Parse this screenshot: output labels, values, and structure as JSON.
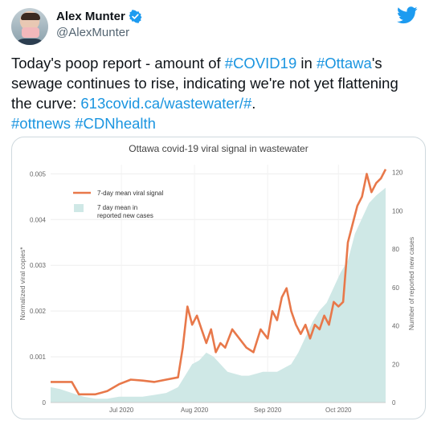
{
  "author": {
    "name": "Alex Munter",
    "handle": "@AlexMunter"
  },
  "tweet": {
    "segments": [
      {
        "text": "Today's poop report - amount of ",
        "link": false
      },
      {
        "text": "#COVID19",
        "link": true
      },
      {
        "text": " in ",
        "link": false
      },
      {
        "text": "#Ottawa",
        "link": true
      },
      {
        "text": "'s sewage continues to rise, indicating we're not yet flattening the curve: ",
        "link": false
      },
      {
        "text": "613covid.ca/wastewater/#",
        "link": true
      },
      {
        "text": ".",
        "link": false
      },
      {
        "text": "\n",
        "link": false
      },
      {
        "text": "#ottnews",
        "link": true
      },
      {
        "text": " ",
        "link": false
      },
      {
        "text": "#CDNhealth",
        "link": true
      }
    ]
  },
  "colors": {
    "link": "#1b95e0",
    "viral_line": "#e8784a",
    "cases_area": "#cfe8e6",
    "twitter_blue": "#1d9bf0"
  },
  "icons": {
    "verified": "verified-badge-icon",
    "brand": "twitter-bird-icon"
  },
  "chart_data": {
    "type": "line",
    "title": "Ottawa covid-19 viral signal in wastewater",
    "ylabel": "Normalized viral copies*",
    "y2label": "Number of reported new cases",
    "ylim": [
      0,
      0.0052
    ],
    "y2lim": [
      0,
      124
    ],
    "yticks": [
      "0",
      "0.001",
      "0.002",
      "0.003",
      "0.004",
      "0.005"
    ],
    "y2ticks": [
      "0",
      "20",
      "40",
      "60",
      "80",
      "100",
      "120"
    ],
    "xticks": [
      "Jul 2020",
      "Aug 2020",
      "Sep 2020",
      "Oct 2020"
    ],
    "x_start": "2020-06-01",
    "x_end": "2020-10-21",
    "legend_position": "top-left",
    "series": [
      {
        "name": "7-day mean viral signal",
        "kind": "line",
        "axis": "left",
        "points": [
          [
            "2020-06-01",
            0.00045
          ],
          [
            "2020-06-10",
            0.00045
          ],
          [
            "2020-06-13",
            0.00018
          ],
          [
            "2020-06-20",
            0.00018
          ],
          [
            "2020-06-25",
            0.00025
          ],
          [
            "2020-06-30",
            0.0004
          ],
          [
            "2020-07-05",
            0.0005
          ],
          [
            "2020-07-10",
            0.00048
          ],
          [
            "2020-07-15",
            0.00045
          ],
          [
            "2020-07-20",
            0.0005
          ],
          [
            "2020-07-25",
            0.00055
          ],
          [
            "2020-07-27",
            0.0012
          ],
          [
            "2020-07-29",
            0.0021
          ],
          [
            "2020-07-31",
            0.0017
          ],
          [
            "2020-08-02",
            0.0019
          ],
          [
            "2020-08-04",
            0.0016
          ],
          [
            "2020-08-06",
            0.0013
          ],
          [
            "2020-08-08",
            0.0016
          ],
          [
            "2020-08-10",
            0.0011
          ],
          [
            "2020-08-12",
            0.0013
          ],
          [
            "2020-08-14",
            0.0012
          ],
          [
            "2020-08-17",
            0.0016
          ],
          [
            "2020-08-20",
            0.0014
          ],
          [
            "2020-08-23",
            0.0012
          ],
          [
            "2020-08-26",
            0.0011
          ],
          [
            "2020-08-29",
            0.0016
          ],
          [
            "2020-09-01",
            0.0014
          ],
          [
            "2020-09-03",
            0.002
          ],
          [
            "2020-09-05",
            0.0018
          ],
          [
            "2020-09-07",
            0.0023
          ],
          [
            "2020-09-09",
            0.0025
          ],
          [
            "2020-09-11",
            0.002
          ],
          [
            "2020-09-13",
            0.0017
          ],
          [
            "2020-09-15",
            0.0015
          ],
          [
            "2020-09-17",
            0.0017
          ],
          [
            "2020-09-19",
            0.0014
          ],
          [
            "2020-09-21",
            0.0017
          ],
          [
            "2020-09-23",
            0.0016
          ],
          [
            "2020-09-25",
            0.0019
          ],
          [
            "2020-09-27",
            0.0017
          ],
          [
            "2020-09-29",
            0.0022
          ],
          [
            "2020-10-01",
            0.0021
          ],
          [
            "2020-10-03",
            0.0022
          ],
          [
            "2020-10-05",
            0.0035
          ],
          [
            "2020-10-07",
            0.0039
          ],
          [
            "2020-10-09",
            0.0043
          ],
          [
            "2020-10-11",
            0.0045
          ],
          [
            "2020-10-13",
            0.005
          ],
          [
            "2020-10-15",
            0.0046
          ],
          [
            "2020-10-17",
            0.0048
          ],
          [
            "2020-10-19",
            0.0049
          ],
          [
            "2020-10-21",
            0.0051
          ]
        ]
      },
      {
        "name": "7 day mean in reported new cases",
        "kind": "area",
        "axis": "right",
        "points": [
          [
            "2020-06-01",
            8
          ],
          [
            "2020-06-05",
            7
          ],
          [
            "2020-06-10",
            5
          ],
          [
            "2020-06-15",
            3
          ],
          [
            "2020-06-20",
            2
          ],
          [
            "2020-06-25",
            2
          ],
          [
            "2020-06-30",
            3
          ],
          [
            "2020-07-05",
            3
          ],
          [
            "2020-07-10",
            3
          ],
          [
            "2020-07-15",
            4
          ],
          [
            "2020-07-20",
            5
          ],
          [
            "2020-07-25",
            8
          ],
          [
            "2020-07-28",
            14
          ],
          [
            "2020-07-31",
            20
          ],
          [
            "2020-08-03",
            22
          ],
          [
            "2020-08-06",
            26
          ],
          [
            "2020-08-09",
            24
          ],
          [
            "2020-08-12",
            20
          ],
          [
            "2020-08-15",
            16
          ],
          [
            "2020-08-18",
            15
          ],
          [
            "2020-08-21",
            14
          ],
          [
            "2020-08-24",
            14
          ],
          [
            "2020-08-27",
            15
          ],
          [
            "2020-08-30",
            16
          ],
          [
            "2020-09-02",
            16
          ],
          [
            "2020-09-05",
            16
          ],
          [
            "2020-09-08",
            18
          ],
          [
            "2020-09-11",
            20
          ],
          [
            "2020-09-14",
            26
          ],
          [
            "2020-09-17",
            34
          ],
          [
            "2020-09-20",
            42
          ],
          [
            "2020-09-23",
            48
          ],
          [
            "2020-09-26",
            52
          ],
          [
            "2020-09-29",
            60
          ],
          [
            "2020-10-02",
            68
          ],
          [
            "2020-10-05",
            74
          ],
          [
            "2020-10-08",
            88
          ],
          [
            "2020-10-11",
            96
          ],
          [
            "2020-10-14",
            104
          ],
          [
            "2020-10-17",
            108
          ],
          [
            "2020-10-21",
            112
          ]
        ]
      }
    ]
  }
}
